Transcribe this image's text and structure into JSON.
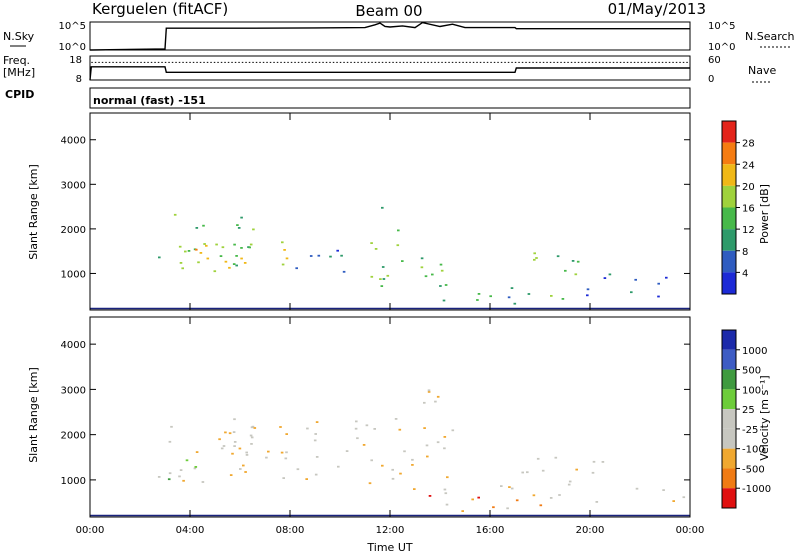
{
  "header": {
    "station": "Kerguelen (fitACF)",
    "beam": "Beam 00",
    "date": "01/May/2013"
  },
  "panels": {
    "nsky": {
      "label": "N.Sky",
      "right_label": "N.Search",
      "left_ticks": [
        "10^5",
        "10^0"
      ],
      "right_ticks": [
        "10^5",
        "10^0"
      ]
    },
    "freq": {
      "label_line1": "Freq.",
      "label_line2": "[MHz]",
      "right_label": "Nave",
      "left_ticks": [
        "18",
        "8"
      ],
      "right_ticks": [
        "60",
        "0"
      ]
    },
    "cpid": {
      "label": "CPID",
      "text": "normal (fast) -151"
    }
  },
  "colors": {
    "power": [
      "#1c2ad6",
      "#2f5cc0",
      "#2e9a6a",
      "#47b94a",
      "#9fd23c",
      "#f0b817",
      "#f57c12",
      "#e3241b"
    ],
    "velocity": [
      "#e01010",
      "#f07b14",
      "#f0a830",
      "#c7c7c0",
      "#c7c7c0",
      "#6dcc3a",
      "#3f9a3f",
      "#3d5cc4",
      "#1c2aaa"
    ],
    "border": "#000000",
    "baseline": "#1a237e"
  },
  "chart_data": [
    {
      "type": "line",
      "name": "sky-noise",
      "title": "",
      "xlim": [
        0,
        24
      ],
      "ylim": [
        0,
        5
      ],
      "x": [
        0,
        0.05,
        3.0,
        3.05,
        6.5,
        9.0,
        11.0,
        11.4,
        11.6,
        11.8,
        12.0,
        12.5,
        13.0,
        13.3,
        14.0,
        14.5,
        15.0,
        17.0,
        17.05,
        23.0,
        24.0
      ],
      "y": [
        0,
        0,
        0.2,
        3.9,
        3.9,
        3.95,
        4.0,
        4.5,
        4.8,
        4.2,
        4.1,
        4.3,
        4.0,
        4.9,
        4.2,
        4.6,
        4.0,
        4.0,
        3.8,
        3.8,
        3.8
      ]
    },
    {
      "type": "line",
      "name": "frequency",
      "xlim": [
        0,
        24
      ],
      "ylim": [
        8,
        18
      ],
      "ylabel": "Freq. [MHz]",
      "x": [
        0,
        0.05,
        3.0,
        3.05,
        17.0,
        17.05,
        24.0
      ],
      "y": [
        8,
        13.5,
        13.5,
        11.2,
        11.2,
        13.0,
        13.0
      ]
    },
    {
      "type": "line",
      "name": "nave",
      "xlim": [
        0,
        24
      ],
      "ylim": [
        0,
        60
      ],
      "x": [
        0.05,
        24.0
      ],
      "y": [
        44,
        44
      ]
    },
    {
      "type": "heatmap",
      "name": "power",
      "xlim": [
        0,
        24
      ],
      "ylim": [
        180,
        4600
      ],
      "ylabel": "Slant Range [km]",
      "colorbar_label": "Power [dB]",
      "colorbar_ticks": [
        "28",
        "24",
        "20",
        "16",
        "12",
        "8",
        "4"
      ],
      "colorbar_values": [
        28,
        24,
        20,
        16,
        12,
        8,
        4
      ],
      "yticks": [
        1000,
        2000,
        3000,
        4000
      ],
      "ytick_labels": [
        "1000",
        "2000",
        "3000",
        "4000"
      ],
      "xticks": [
        0,
        4,
        8,
        12,
        16,
        20,
        24
      ],
      "regions": [
        {
          "t0": 2.7,
          "t1": 6.5,
          "r0": 900,
          "r1": 2500,
          "level": 3
        },
        {
          "t0": 3.0,
          "t1": 5.5,
          "r0": 1100,
          "r1": 1900,
          "level": 5
        },
        {
          "t0": 5.5,
          "t1": 8.2,
          "r0": 850,
          "r1": 1700,
          "level": 4
        },
        {
          "t0": 8.2,
          "t1": 11.0,
          "r0": 950,
          "r1": 1600,
          "level": 1
        },
        {
          "t0": 11.0,
          "t1": 12.8,
          "r0": 700,
          "r1": 2500,
          "level": 3
        },
        {
          "t0": 12.8,
          "t1": 14.5,
          "r0": 350,
          "r1": 1700,
          "level": 3
        },
        {
          "t0": 14.5,
          "t1": 17.0,
          "r0": 300,
          "r1": 900,
          "level": 2
        },
        {
          "t0": 17.0,
          "t1": 19.5,
          "r0": 400,
          "r1": 1500,
          "level": 3
        },
        {
          "t0": 19.5,
          "t1": 21.0,
          "r0": 400,
          "r1": 1100,
          "level": 1
        },
        {
          "t0": 21.5,
          "t1": 23.9,
          "r0": 450,
          "r1": 950,
          "level": 1
        }
      ]
    },
    {
      "type": "heatmap",
      "name": "velocity",
      "xlim": [
        0,
        24
      ],
      "ylim": [
        180,
        4600
      ],
      "xlabel": "Time UT",
      "ylabel": "Slant Range [km]",
      "colorbar_label": "Velocity [m s⁻¹]",
      "colorbar_ticks": [
        "1000",
        "500",
        "100",
        "25",
        "-25",
        "-100",
        "-500",
        "-1000"
      ],
      "colorbar_values": [
        1000,
        500,
        100,
        25,
        -25,
        -100,
        -500,
        -1000
      ],
      "yticks": [
        1000,
        2000,
        3000,
        4000
      ],
      "ytick_labels": [
        "1000",
        "2000",
        "3000",
        "4000"
      ],
      "xticks": [
        0,
        4,
        8,
        12,
        16,
        20,
        24
      ],
      "xtick_labels": [
        "00:00",
        "04:00",
        "08:00",
        "12:00",
        "16:00",
        "20:00",
        "00:00"
      ],
      "regions": [
        {
          "t0": 2.7,
          "t1": 6.5,
          "r0": 900,
          "r1": 2500,
          "level": 3
        },
        {
          "t0": 3.0,
          "t1": 5.0,
          "r0": 1000,
          "r1": 1500,
          "level": 5
        },
        {
          "t0": 5.5,
          "t1": 12.8,
          "r0": 900,
          "r1": 2400,
          "level": 3
        },
        {
          "t0": 12.8,
          "t1": 14.5,
          "r0": 400,
          "r1": 3300,
          "level": 3
        },
        {
          "t0": 13.0,
          "t1": 15.5,
          "r0": 300,
          "r1": 700,
          "level": 1
        },
        {
          "t0": 15.5,
          "t1": 19.0,
          "r0": 300,
          "r1": 900,
          "level": 2
        },
        {
          "t0": 16.8,
          "t1": 20.5,
          "r0": 500,
          "r1": 1500,
          "level": 3
        },
        {
          "t0": 21.5,
          "t1": 23.9,
          "r0": 500,
          "r1": 950,
          "level": 3
        }
      ]
    }
  ]
}
